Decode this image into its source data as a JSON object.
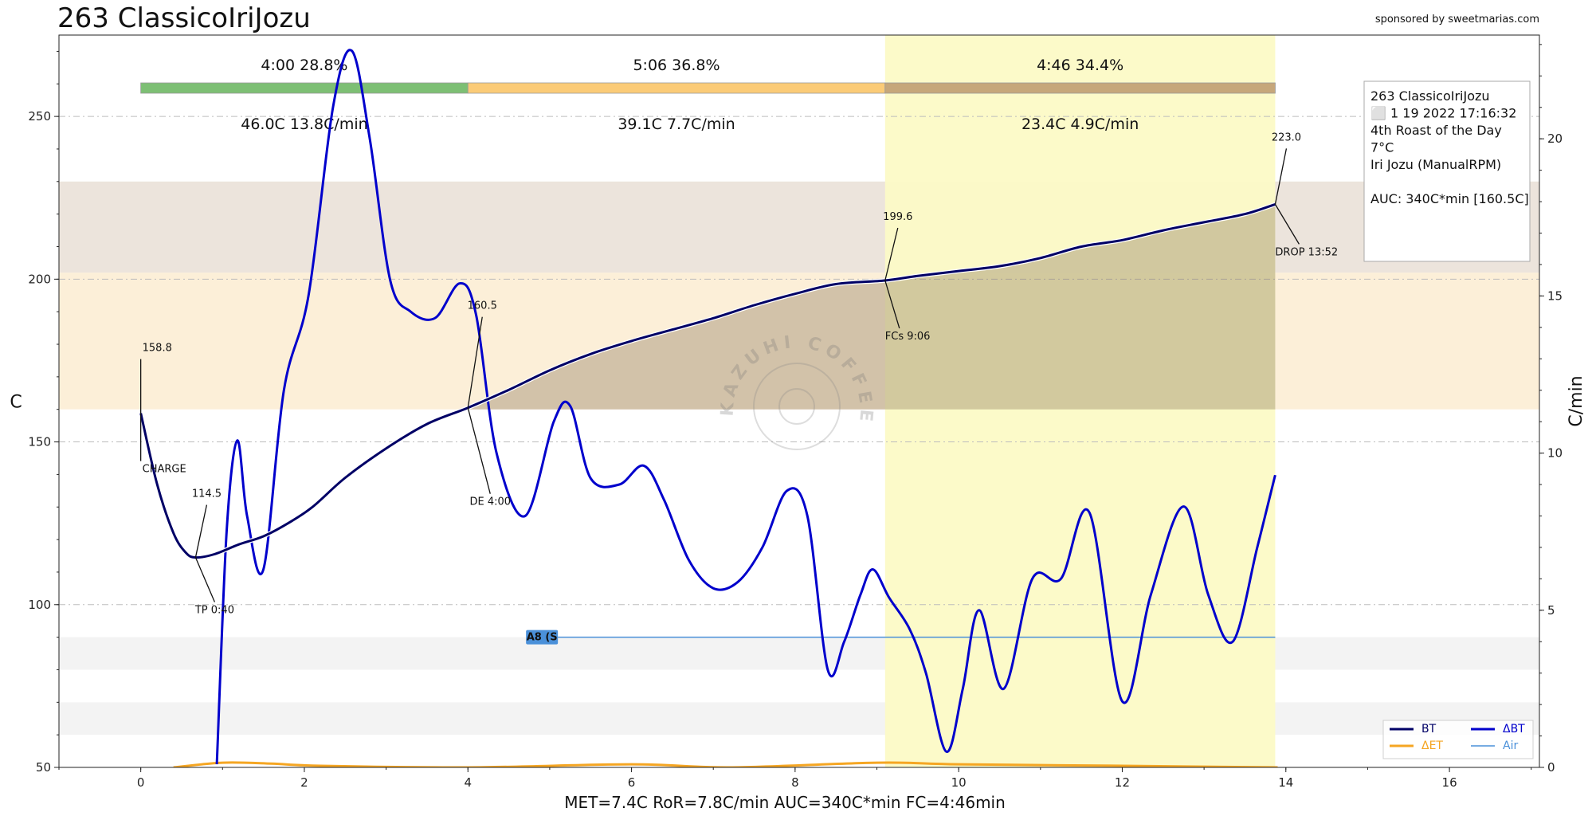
{
  "header": {
    "title": "263 ClassicoIriJozu",
    "sponsor": "sponsored by sweetmarias.com"
  },
  "chart_data": {
    "type": "line",
    "xlim": [
      -1,
      17.1
    ],
    "ylim_left": [
      50,
      275
    ],
    "ylim_right": [
      0,
      23.3
    ],
    "ylabel_left": "C",
    "ylabel_right": "C/min",
    "x_ticks": [
      "0",
      "2",
      "4",
      "6",
      "8",
      "10",
      "12",
      "14",
      "16"
    ],
    "y_ticks_left": [
      "50",
      "100",
      "150",
      "200",
      "250"
    ],
    "y_ticks_right": [
      "0",
      "5",
      "10",
      "15",
      "20"
    ],
    "grid": "horizontal dashed at left-axis ticks",
    "legend_position": "bottom-right",
    "bands": [
      {
        "from": 202,
        "to": 230,
        "color": "#ece4dc"
      },
      {
        "from": 160,
        "to": 202,
        "color": "#fcefd8"
      },
      {
        "from": 80,
        "to": 90,
        "color": "#f3f3f3"
      },
      {
        "from": 60,
        "to": 70,
        "color": "#f3f3f3"
      }
    ],
    "highlight_span": {
      "from": 9.1,
      "to": 13.87,
      "color": "#fcfac6"
    },
    "series": [
      {
        "name": "BT",
        "axis": "left",
        "color": "#000066",
        "x": [
          0,
          0.2,
          0.4,
          0.55,
          0.67,
          0.9,
          1.2,
          1.5,
          1.8,
          2.1,
          2.5,
          3.0,
          3.5,
          4.0,
          4.5,
          5.0,
          5.5,
          6.0,
          6.5,
          7.0,
          7.5,
          8.0,
          8.5,
          9.1,
          9.5,
          10.0,
          10.5,
          11.0,
          11.5,
          12.0,
          12.5,
          13.0,
          13.5,
          13.87
        ],
        "values": [
          158.8,
          137,
          122,
          116,
          114.5,
          115.5,
          118.5,
          121,
          125,
          130,
          139,
          148,
          155.5,
          160.5,
          166,
          172,
          177,
          181,
          184.5,
          188,
          192,
          195.5,
          198.5,
          199.6,
          201,
          202.5,
          204,
          206.5,
          210,
          212,
          215,
          217.5,
          220,
          223.0
        ]
      },
      {
        "name": "ΔBT",
        "axis": "right",
        "color": "#0000cc",
        "x": [
          0.93,
          1.05,
          1.18,
          1.3,
          1.5,
          1.75,
          2.05,
          2.35,
          2.58,
          2.8,
          3.05,
          3.3,
          3.6,
          3.9,
          4.1,
          4.35,
          4.7,
          5.05,
          5.25,
          5.5,
          5.85,
          6.15,
          6.4,
          6.7,
          7.0,
          7.3,
          7.6,
          7.9,
          8.15,
          8.4,
          8.6,
          8.8,
          8.95,
          9.15,
          9.4,
          9.6,
          9.85,
          10.05,
          10.25,
          10.55,
          10.9,
          11.25,
          11.6,
          12.0,
          12.35,
          12.75,
          13.05,
          13.35,
          13.65,
          13.87
        ],
        "values": [
          0.1,
          7.5,
          10.4,
          8.0,
          6.3,
          12.0,
          15.0,
          21.0,
          22.8,
          20.0,
          15.5,
          14.5,
          14.3,
          15.4,
          14.4,
          10.0,
          8.0,
          11.0,
          11.5,
          9.2,
          9.0,
          9.6,
          8.5,
          6.6,
          5.7,
          5.9,
          7.0,
          8.8,
          8.0,
          3.1,
          4.0,
          5.5,
          6.3,
          5.4,
          4.4,
          3.0,
          0.5,
          2.5,
          5.0,
          2.5,
          6.0,
          6.0,
          8.1,
          2.1,
          5.5,
          8.3,
          5.5,
          4.0,
          7.0,
          9.3
        ]
      },
      {
        "name": "ΔET",
        "axis": "right",
        "color": "#f5a623",
        "x": [
          0.4,
          1.0,
          1.6,
          2.2,
          4.0,
          6.0,
          7.2,
          9.0,
          10.0,
          12.0,
          13.9
        ],
        "values": [
          0.0,
          0.15,
          0.12,
          0.05,
          0.0,
          0.1,
          0.0,
          0.15,
          0.1,
          0.05,
          0.0
        ]
      },
      {
        "name": "Air",
        "axis": "left",
        "color": "#4a90d9",
        "x": [
          5.1,
          13.87
        ],
        "values": [
          90,
          90
        ]
      }
    ],
    "phase_bars": [
      {
        "time": "4:00",
        "percent": "28.8%",
        "delta": "46.0C",
        "rate": "13.8C/min",
        "from": 0,
        "to": 4.0,
        "color": "#7dbf74"
      },
      {
        "time": "5:06",
        "percent": "36.8%",
        "delta": "39.1C",
        "rate": "7.7C/min",
        "from": 4.0,
        "to": 9.1,
        "color": "#fbcb77"
      },
      {
        "time": "4:46",
        "percent": "34.4%",
        "delta": "23.4C",
        "rate": "4.9C/min",
        "from": 9.1,
        "to": 13.87,
        "color": "#c6a77a"
      }
    ],
    "annotations": [
      {
        "value_label": "158.8",
        "event_label": "CHARGE",
        "x": 0,
        "y": 158.8
      },
      {
        "value_label": "114.5",
        "event_label": "TP 0:40",
        "x": 0.67,
        "y": 114.5
      },
      {
        "value_label": "160.5",
        "event_label": "DE 4:00",
        "x": 4.0,
        "y": 160.5
      },
      {
        "value_label": "199.6",
        "event_label": "FCs 9:06",
        "x": 9.1,
        "y": 199.6
      },
      {
        "value_label": "223.0",
        "event_label": "DROP 13:52",
        "x": 13.87,
        "y": 223.0
      }
    ],
    "special_marker": {
      "label": "A8 (S",
      "x": 5.1,
      "y": 90
    },
    "info_box": [
      "263 ClassicoIriJozu",
      "⬜ 1 19 2022 17:16:32",
      "4th Roast of the Day",
      "7°C",
      "Iri Jozu (ManualRPM)",
      "",
      "AUC: 340C*min [160.5C]"
    ],
    "watermark": "KAZUHI COFFEE",
    "footer": "MET=7.4C   RoR=7.8C/min   AUC=340C*min   FC=4:46min"
  }
}
